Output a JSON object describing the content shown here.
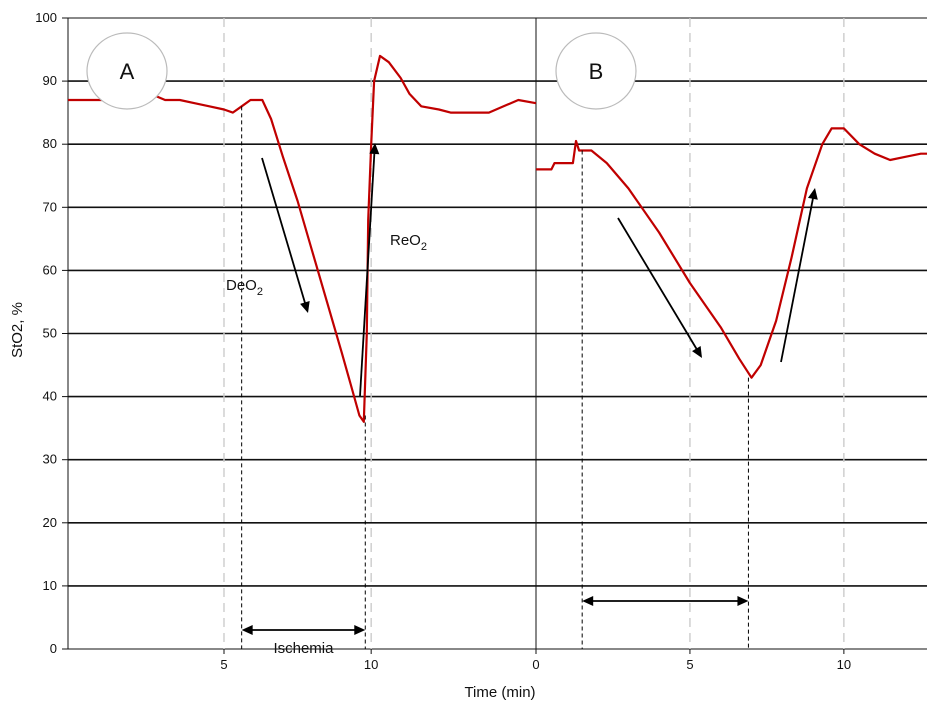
{
  "chart_data": {
    "type": "line",
    "ylabel": "StO2, %",
    "xlabel": "Time (min)",
    "ylim": [
      0,
      100
    ],
    "y_ticks": [
      "0",
      "10",
      "20",
      "30",
      "40",
      "50",
      "60",
      "70",
      "80",
      "90",
      "100"
    ],
    "grid": true,
    "colors": {
      "series": "#c00000",
      "grid": "#111111",
      "dashed": "#cccccc"
    },
    "panels": [
      {
        "label": "A",
        "xlim": [
          -0.3,
          15.6
        ],
        "x_ticks": [
          5,
          10
        ],
        "x_tick_labels": [
          "5",
          "10"
        ],
        "points": [
          [
            -0.3,
            87
          ],
          [
            0.5,
            87
          ],
          [
            1,
            87
          ],
          [
            1.5,
            86.5
          ],
          [
            2,
            87
          ],
          [
            2.5,
            88
          ],
          [
            3,
            87
          ],
          [
            3.5,
            87
          ],
          [
            4,
            86.5
          ],
          [
            4.5,
            86
          ],
          [
            5,
            85.5
          ],
          [
            5.3,
            85
          ],
          [
            5.6,
            86
          ],
          [
            5.9,
            87
          ],
          [
            6.3,
            87
          ],
          [
            6.6,
            84
          ],
          [
            7,
            78
          ],
          [
            7.5,
            71
          ],
          [
            8,
            63
          ],
          [
            8.5,
            55
          ],
          [
            9,
            47
          ],
          [
            9.3,
            42
          ],
          [
            9.6,
            37
          ],
          [
            9.75,
            36
          ],
          [
            9.85,
            50
          ],
          [
            9.9,
            68
          ],
          [
            10,
            80
          ],
          [
            10.1,
            90
          ],
          [
            10.3,
            94
          ],
          [
            10.6,
            93
          ],
          [
            11,
            90.5
          ],
          [
            11.3,
            88
          ],
          [
            11.7,
            86
          ],
          [
            12.3,
            85.5
          ],
          [
            12.7,
            85
          ],
          [
            13.5,
            85
          ],
          [
            14,
            85
          ],
          [
            14.5,
            86
          ],
          [
            15,
            87
          ],
          [
            15.6,
            86.5
          ]
        ],
        "annotations": {
          "deo2": {
            "base": "DeO",
            "sub": "2"
          },
          "reo2": {
            "base": "ReO",
            "sub": "2"
          },
          "ischemia": "Ischemia"
        },
        "ischemia_interval": [
          5.6,
          9.8
        ]
      },
      {
        "label": "B",
        "xlim": [
          0,
          12.7
        ],
        "x_ticks": [
          0,
          5,
          10
        ],
        "x_tick_labels": [
          "0",
          "5",
          "10"
        ],
        "points": [
          [
            0,
            76
          ],
          [
            0.5,
            76
          ],
          [
            0.6,
            77
          ],
          [
            1,
            77
          ],
          [
            1.2,
            77
          ],
          [
            1.3,
            80.5
          ],
          [
            1.4,
            79
          ],
          [
            1.8,
            79
          ],
          [
            2.3,
            77
          ],
          [
            3,
            73
          ],
          [
            4,
            66
          ],
          [
            5,
            58
          ],
          [
            6,
            51
          ],
          [
            6.6,
            46
          ],
          [
            7,
            43
          ],
          [
            7.3,
            45
          ],
          [
            7.8,
            52
          ],
          [
            8.3,
            62
          ],
          [
            8.8,
            73
          ],
          [
            9.3,
            80
          ],
          [
            9.6,
            82.5
          ],
          [
            10,
            82.5
          ],
          [
            10.5,
            80
          ],
          [
            11,
            78.5
          ],
          [
            11.5,
            77.5
          ],
          [
            12,
            78
          ],
          [
            12.5,
            78.5
          ],
          [
            12.7,
            78.5
          ]
        ],
        "interval": [
          1.5,
          6.9
        ]
      }
    ]
  }
}
